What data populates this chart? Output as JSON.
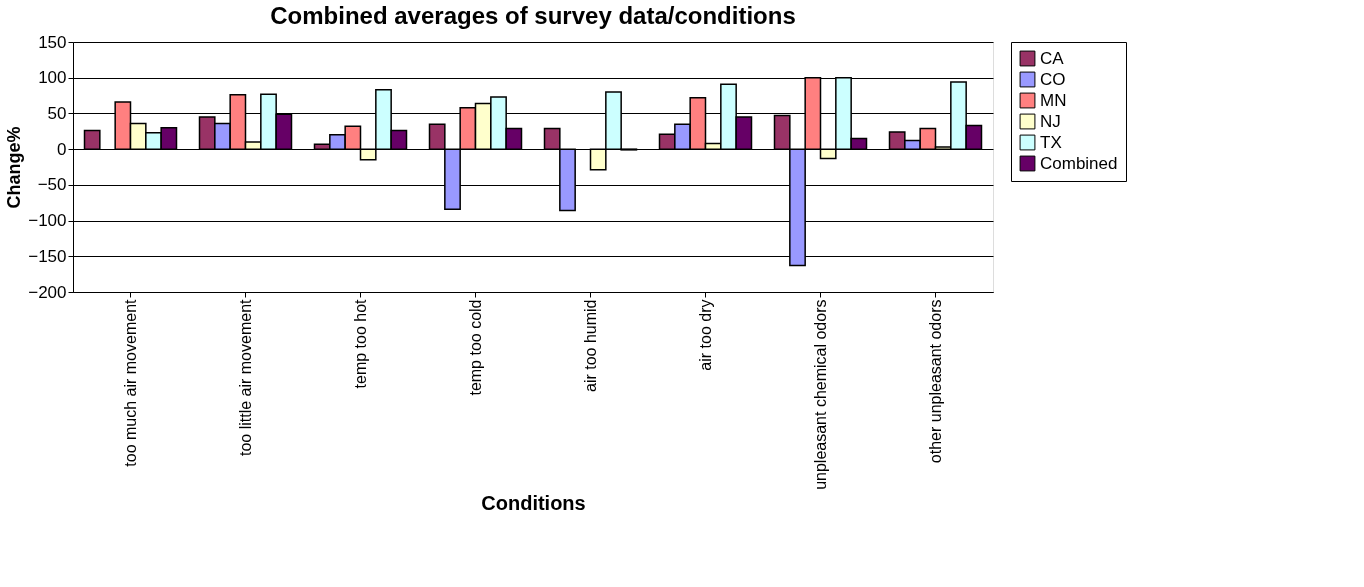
{
  "chart_data": {
    "type": "bar",
    "title": "Combined averages of survey data/conditions",
    "xlabel": "Conditions",
    "ylabel": "Change%",
    "categories": [
      "too much air movement",
      "too little air movement",
      "temp too hot",
      "temp too cold",
      "air too humid",
      "air too dry",
      "unpleasant chemical odors",
      "other unpleasant odors"
    ],
    "series": [
      {
        "name": "CA",
        "color": "#993366",
        "values": [
          26,
          45,
          7,
          35,
          29,
          21,
          47,
          24
        ]
      },
      {
        "name": "CO",
        "color": "#9999ff",
        "values": [
          null,
          36,
          20,
          -84,
          -86,
          35,
          -163,
          12
        ]
      },
      {
        "name": "MN",
        "color": "#ff8080",
        "values": [
          66,
          76,
          32,
          58,
          null,
          72,
          100,
          29
        ]
      },
      {
        "name": "NJ",
        "color": "#ffffcc",
        "values": [
          36,
          10,
          -15,
          64,
          -29,
          8,
          -13,
          3
        ]
      },
      {
        "name": "TX",
        "color": "#ccffff",
        "values": [
          23,
          77,
          83,
          73,
          80,
          91,
          100,
          94
        ]
      },
      {
        "name": "Combined",
        "color": "#660066",
        "values": [
          30,
          49,
          26,
          29,
          -1,
          45,
          15,
          33
        ]
      }
    ],
    "ylim": [
      -200,
      150
    ],
    "yticks": [
      -200,
      -150,
      -100,
      -50,
      0,
      50,
      100,
      150
    ],
    "grid": "y",
    "legend": "right"
  }
}
